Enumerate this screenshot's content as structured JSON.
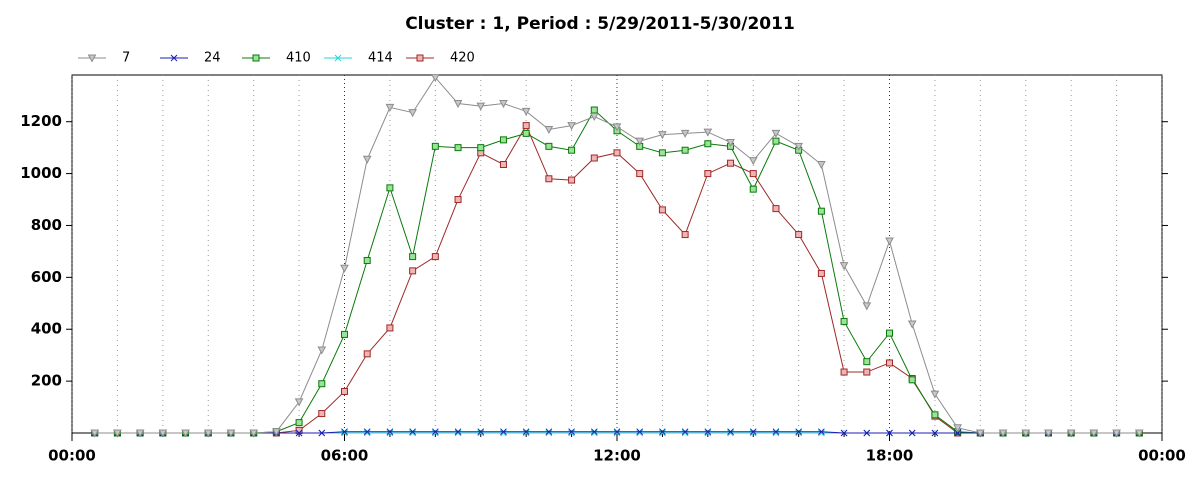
{
  "chart_data": {
    "type": "line",
    "title": "Cluster : 1, Period : 5/29/2011-5/30/2011",
    "x": [
      0.5,
      1,
      1.5,
      2,
      2.5,
      3,
      3.5,
      4,
      4.5,
      5,
      5.5,
      6,
      6.5,
      7,
      7.5,
      8,
      8.5,
      9,
      9.5,
      10,
      10.5,
      11,
      11.5,
      12,
      12.5,
      13,
      13.5,
      14,
      14.5,
      15,
      15.5,
      16,
      16.5,
      17,
      17.5,
      18,
      18.5,
      19,
      19.5,
      20,
      20.5,
      21,
      21.5,
      22,
      22.5,
      23,
      23.5
    ],
    "xlim": [
      0,
      24
    ],
    "xticks": [
      {
        "value": 0,
        "label": "00:00"
      },
      {
        "value": 6,
        "label": "06:00"
      },
      {
        "value": 12,
        "label": "12:00"
      },
      {
        "value": 18,
        "label": "18:00"
      },
      {
        "value": 24,
        "label": "00:00"
      }
    ],
    "x_minor_ticks": [
      1,
      2,
      3,
      4,
      5,
      7,
      8,
      9,
      10,
      11,
      13,
      14,
      15,
      16,
      17,
      19,
      20,
      21,
      22,
      23
    ],
    "ylim": [
      0,
      1380
    ],
    "yticks": [
      200,
      400,
      600,
      800,
      1000,
      1200
    ],
    "grid": true,
    "legend": "top-left",
    "series": [
      {
        "name": "7",
        "color": "#8c8c8c",
        "marker": "triangle-down",
        "values": [
          0,
          0,
          0,
          0,
          0,
          0,
          0,
          0,
          5,
          120,
          320,
          635,
          1055,
          1255,
          1235,
          1370,
          1270,
          1260,
          1270,
          1240,
          1170,
          1185,
          1220,
          1180,
          1125,
          1150,
          1155,
          1160,
          1120,
          1050,
          1155,
          1105,
          1035,
          645,
          490,
          740,
          420,
          150,
          20,
          0,
          0,
          0,
          0,
          0,
          0,
          0,
          0
        ]
      },
      {
        "name": "24",
        "color": "#1c1cb4",
        "marker": "x",
        "values": [
          0,
          0,
          0,
          0,
          0,
          0,
          0,
          0,
          0,
          0,
          0,
          5,
          5,
          5,
          5,
          5,
          5,
          5,
          5,
          5,
          5,
          5,
          5,
          5,
          5,
          5,
          5,
          5,
          5,
          5,
          5,
          5,
          5,
          0,
          0,
          0,
          0,
          0,
          0,
          0,
          0,
          0,
          0,
          0,
          0,
          0,
          0
        ]
      },
      {
        "name": "410",
        "color": "#0a7a0a",
        "marker": "square",
        "values": [
          0,
          0,
          0,
          0,
          0,
          0,
          0,
          0,
          5,
          40,
          190,
          380,
          665,
          945,
          680,
          1105,
          1100,
          1100,
          1130,
          1155,
          1105,
          1090,
          1245,
          1165,
          1105,
          1080,
          1090,
          1115,
          1105,
          940,
          1125,
          1090,
          855,
          430,
          275,
          385,
          205,
          70,
          5,
          0,
          0,
          0,
          0,
          0,
          0,
          0,
          0
        ]
      },
      {
        "name": "414",
        "color": "#22d8d8",
        "marker": "x",
        "values": [
          0,
          0,
          0,
          0,
          0,
          0,
          0,
          0,
          0,
          0,
          0,
          0,
          0,
          0,
          0,
          0,
          0,
          0,
          0,
          0,
          0,
          0,
          0,
          0,
          0,
          0,
          0,
          0,
          0,
          0,
          0,
          0,
          0,
          0,
          0,
          0,
          0,
          0,
          0,
          0,
          0,
          0,
          0,
          0,
          0,
          0,
          0
        ]
      },
      {
        "name": "420",
        "color": "#a02828",
        "marker": "square",
        "values": [
          0,
          0,
          0,
          0,
          0,
          0,
          0,
          0,
          0,
          10,
          75,
          160,
          305,
          405,
          625,
          680,
          900,
          1080,
          1035,
          1185,
          980,
          975,
          1060,
          1080,
          1000,
          860,
          765,
          1000,
          1040,
          1000,
          865,
          765,
          615,
          235,
          235,
          270,
          210,
          65,
          0,
          0,
          0,
          0,
          0,
          0,
          0,
          0,
          0
        ]
      }
    ]
  }
}
